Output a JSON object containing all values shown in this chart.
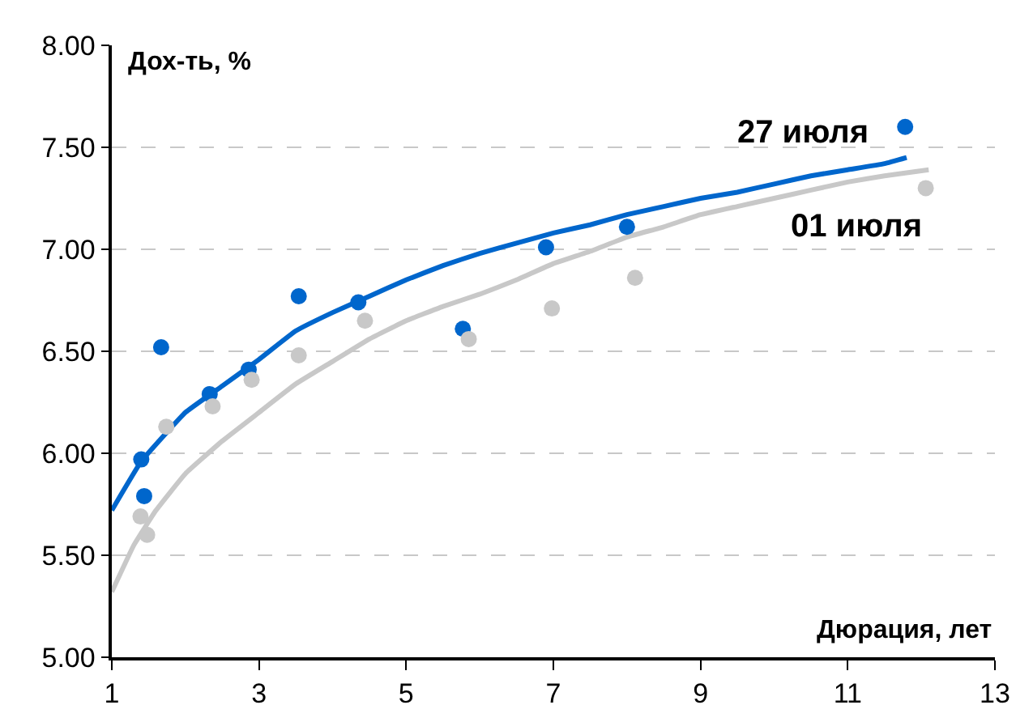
{
  "chart_data": {
    "type": "line",
    "xlabel": "Дюрация, лет",
    "ylabel": "Дох-ть, %",
    "series": [
      {
        "name": "27 июля",
        "color": "#0066cc",
        "x": [
          1,
          1.4,
          2,
          2.5,
          3,
          3.5,
          4,
          4.5,
          5,
          5.5,
          6,
          6.5,
          7,
          7.5,
          8,
          8.5,
          9,
          9.5,
          10,
          10.5,
          11,
          11.5,
          11.8
        ],
        "values": [
          5.72,
          5.96,
          6.2,
          6.33,
          6.46,
          6.6,
          6.69,
          6.77,
          6.85,
          6.92,
          6.98,
          7.03,
          7.08,
          7.12,
          7.17,
          7.21,
          7.25,
          7.28,
          7.32,
          7.36,
          7.39,
          7.42,
          7.45
        ]
      },
      {
        "name": "01 июля",
        "color": "#c8c8c8",
        "x": [
          1,
          1.3,
          1.6,
          2,
          2.5,
          3,
          3.5,
          4,
          4.5,
          5,
          5.5,
          6,
          6.5,
          7,
          7.5,
          8,
          8.5,
          9,
          9.5,
          10,
          10.5,
          11,
          11.5,
          12.1
        ],
        "values": [
          5.32,
          5.55,
          5.72,
          5.9,
          6.06,
          6.2,
          6.34,
          6.45,
          6.56,
          6.65,
          6.72,
          6.78,
          6.85,
          6.93,
          6.99,
          7.06,
          7.11,
          7.17,
          7.21,
          7.25,
          7.29,
          7.33,
          7.36,
          7.39
        ]
      },
      {
        "type": "scatter",
        "color": "#0066cc",
        "marker": "circle",
        "x": [
          1.4,
          1.44,
          1.67,
          2.33,
          2.86,
          3.54,
          4.35,
          5.77,
          6.9,
          8.0,
          11.78
        ],
        "values": [
          5.97,
          5.79,
          6.52,
          6.29,
          6.41,
          6.77,
          6.74,
          6.61,
          7.01,
          7.11,
          7.6
        ]
      },
      {
        "type": "scatter",
        "color": "#c8c8c8",
        "marker": "circle",
        "x": [
          1.39,
          1.48,
          1.74,
          2.37,
          2.9,
          3.54,
          4.44,
          5.85,
          6.98,
          8.11,
          12.06
        ],
        "values": [
          5.69,
          5.6,
          6.13,
          6.23,
          6.36,
          6.48,
          6.65,
          6.56,
          6.71,
          6.86,
          7.3
        ]
      }
    ],
    "xlim": [
      1,
      13
    ],
    "xticks": [
      1,
      3,
      5,
      7,
      9,
      11,
      13
    ],
    "ylim": [
      5,
      8
    ],
    "yticks": [
      {
        "value": 5,
        "label": "5.00"
      },
      {
        "value": 5.5,
        "label": "5.50"
      },
      {
        "value": 6,
        "label": "6.00"
      },
      {
        "value": 6.5,
        "label": "6.50"
      },
      {
        "value": 7,
        "label": "7.00"
      },
      {
        "value": 7.5,
        "label": "7.50"
      },
      {
        "value": 8,
        "label": "8.00"
      }
    ],
    "grid": "y",
    "line_style": "solid"
  }
}
